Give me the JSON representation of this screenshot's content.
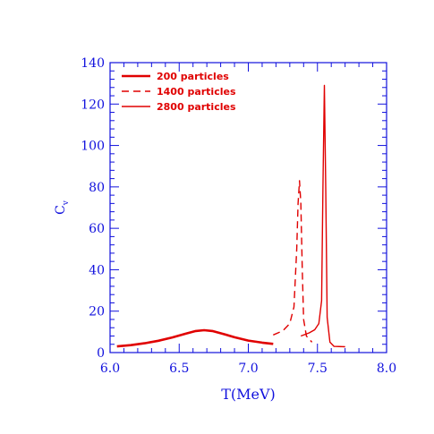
{
  "chart_data": {
    "type": "line",
    "title": "",
    "xlabel": "T(MeV)",
    "ylabel": "C",
    "ylabel_subscript": "v",
    "xlim": [
      6.0,
      8.0
    ],
    "ylim": [
      0,
      140
    ],
    "xticks": [
      {
        "value": 6.0,
        "label": "6.0"
      },
      {
        "value": 6.5,
        "label": "6.5"
      },
      {
        "value": 7.0,
        "label": "7.0"
      },
      {
        "value": 7.5,
        "label": "7.5"
      },
      {
        "value": 8.0,
        "label": "8.0"
      }
    ],
    "yticks": [
      {
        "value": 0,
        "label": "0"
      },
      {
        "value": 20,
        "label": "20"
      },
      {
        "value": 40,
        "label": "40"
      },
      {
        "value": 60,
        "label": "60"
      },
      {
        "value": 80,
        "label": "80"
      },
      {
        "value": 100,
        "label": "100"
      },
      {
        "value": 120,
        "label": "120"
      },
      {
        "value": 140,
        "label": "140"
      }
    ],
    "grid": false,
    "legend": "top-left",
    "colors": {
      "axis": "#1010dd",
      "series": "#e00000"
    },
    "series": [
      {
        "name": "200 particles",
        "style": "thick",
        "x": [
          6.05,
          6.15,
          6.25,
          6.35,
          6.45,
          6.55,
          6.62,
          6.68,
          6.74,
          6.82,
          6.9,
          7.0,
          7.1,
          7.18
        ],
        "y": [
          3.0,
          3.6,
          4.5,
          5.7,
          7.3,
          9.2,
          10.4,
          10.8,
          10.4,
          9.0,
          7.4,
          5.8,
          4.8,
          4.2
        ]
      },
      {
        "name": "1400 particles",
        "style": "dashed",
        "x": [
          7.18,
          7.25,
          7.3,
          7.33,
          7.35,
          7.36,
          7.37,
          7.38,
          7.39,
          7.4,
          7.42,
          7.46
        ],
        "y": [
          8.5,
          10.5,
          14,
          22,
          50,
          72,
          83,
          72,
          40,
          16,
          8,
          5
        ]
      },
      {
        "name": "2800 particles",
        "style": "thin",
        "x": [
          7.38,
          7.44,
          7.48,
          7.51,
          7.53,
          7.54,
          7.55,
          7.56,
          7.57,
          7.59,
          7.62,
          7.7
        ],
        "y": [
          8,
          9.5,
          11,
          14,
          25,
          80,
          129,
          80,
          17,
          5,
          3,
          2.8
        ]
      }
    ]
  }
}
